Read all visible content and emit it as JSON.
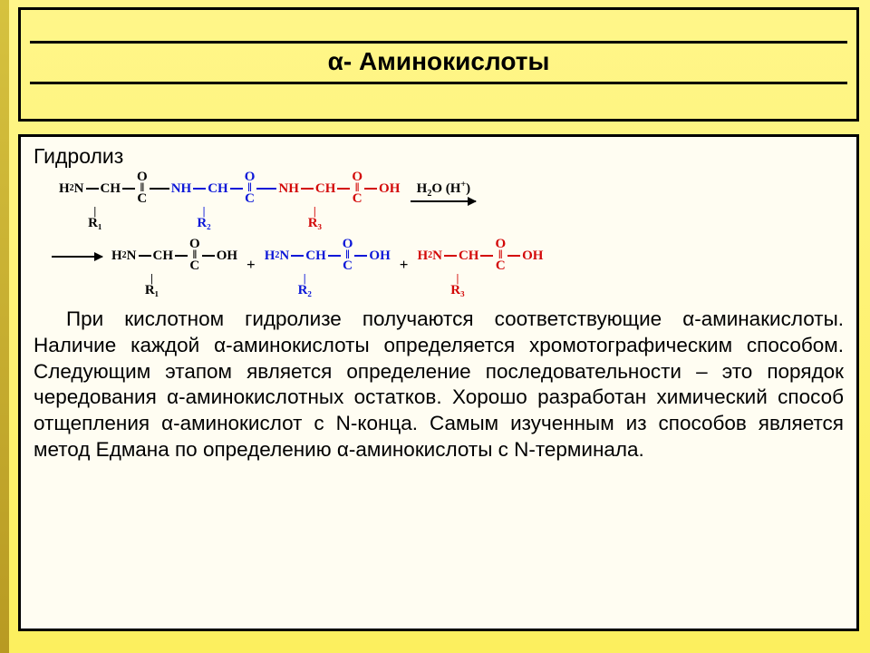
{
  "title": "α- Аминокислоты",
  "subtitle": "Гидролиз",
  "reagent_label": "H₂O (H⁺)",
  "residues": {
    "top": [
      {
        "color": "black",
        "r": "R₁",
        "end": "none"
      },
      {
        "color": "blue",
        "r": "R₂",
        "end": "none"
      },
      {
        "color": "red",
        "r": "R₃",
        "end": "OH"
      }
    ],
    "bottom": [
      {
        "color": "black",
        "r": "R₁"
      },
      {
        "color": "blue",
        "r": "R₂"
      },
      {
        "color": "red",
        "r": "R₃"
      }
    ]
  },
  "paragraph": "При кислотном гидролизе получаются соответствующие α-аминакислоты. Наличие каждой α-аминокислоты определяется хромотографическим способом. Следующим этапом является определение последовательности – это порядок чередования α-аминокислотных остатков. Хорошо разработан химический способ отщепления α-аминокислот с N-конца. Самым изученным из способов является метод Едмана по определению α-аминокислоты с N-терминала."
}
